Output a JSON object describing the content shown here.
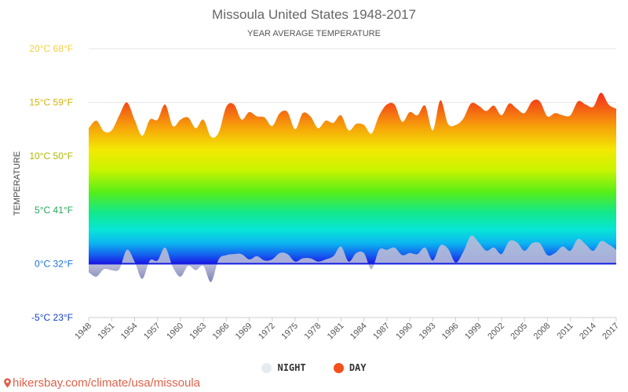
{
  "title": "Missoula United States 1948-2017",
  "subtitle": "YEAR AVERAGE TEMPERATURE",
  "legend": {
    "night": "NIGHT",
    "day": "DAY"
  },
  "source": "hikersbay.com/climate/usa/missoula",
  "colors": {
    "night_legend": "#e6ebf0",
    "day_legend": "#f4501e",
    "night_fill": "#7c7fb5",
    "baseline": "#1420e0",
    "source": "#e0604a"
  },
  "chart_data": {
    "type": "area",
    "title": "Missoula United States 1948-2017",
    "subtitle": "YEAR AVERAGE TEMPERATURE",
    "ylabel": "TEMPERATURE",
    "xlabel": "",
    "ylim": [
      -5,
      20
    ],
    "xlim": [
      1948,
      2017
    ],
    "y_ticks": [
      {
        "value": 20,
        "label": "20°C 68°F",
        "color": "#f4d03f"
      },
      {
        "value": 15,
        "label": "15°C 59°F",
        "color": "#d4b20a"
      },
      {
        "value": 10,
        "label": "10°C 50°F",
        "color": "#b0b800"
      },
      {
        "value": 5,
        "label": "5°C 41°F",
        "color": "#22a858"
      },
      {
        "value": 0,
        "label": "0°C 32°F",
        "color": "#1a72d8"
      },
      {
        "value": -5,
        "label": "-5°C 23°F",
        "color": "#1440c8"
      }
    ],
    "x_ticks": [
      "1948",
      "1951",
      "1954",
      "1957",
      "1960",
      "1963",
      "1966",
      "1969",
      "1972",
      "1975",
      "1978",
      "1981",
      "1984",
      "1987",
      "1990",
      "1993",
      "1996",
      "1999",
      "2002",
      "2005",
      "2008",
      "2011",
      "2014",
      "2017"
    ],
    "grid": true,
    "legend_position": "bottom",
    "x": [
      1948,
      1949,
      1950,
      1951,
      1952,
      1953,
      1954,
      1955,
      1956,
      1957,
      1958,
      1959,
      1960,
      1961,
      1962,
      1963,
      1964,
      1965,
      1966,
      1967,
      1968,
      1969,
      1970,
      1971,
      1972,
      1973,
      1974,
      1975,
      1976,
      1977,
      1978,
      1979,
      1980,
      1981,
      1982,
      1983,
      1984,
      1985,
      1986,
      1987,
      1988,
      1989,
      1990,
      1991,
      1992,
      1993,
      1994,
      1995,
      1996,
      1997,
      1998,
      1999,
      2000,
      2001,
      2002,
      2003,
      2004,
      2005,
      2006,
      2007,
      2008,
      2009,
      2010,
      2011,
      2012,
      2013,
      2014,
      2015,
      2016,
      2017
    ],
    "series": [
      {
        "name": "DAY",
        "values": [
          12.6,
          13.3,
          12.3,
          12.4,
          13.8,
          15.0,
          13.4,
          11.9,
          13.4,
          13.4,
          14.8,
          12.8,
          13.4,
          13.6,
          12.6,
          13.4,
          11.8,
          12.2,
          14.6,
          14.8,
          13.4,
          14.1,
          13.7,
          13.6,
          12.8,
          14.0,
          14.1,
          12.5,
          14.0,
          13.7,
          12.6,
          13.3,
          13.1,
          13.8,
          12.4,
          13.0,
          12.9,
          12.1,
          13.8,
          14.8,
          14.8,
          13.2,
          14.1,
          13.8,
          14.7,
          12.4,
          15.2,
          13.0,
          12.9,
          13.5,
          14.9,
          14.7,
          14.2,
          14.7,
          13.8,
          14.9,
          14.4,
          14.0,
          15.1,
          15.1,
          13.7,
          14.0,
          13.8,
          13.8,
          15.1,
          14.8,
          14.6,
          15.9,
          14.8,
          14.4
        ]
      },
      {
        "name": "NIGHT",
        "values": [
          -0.8,
          -1.2,
          -0.5,
          -0.6,
          -0.5,
          1.3,
          0.2,
          -1.4,
          0.3,
          0.3,
          1.5,
          -0.3,
          -1.2,
          -0.2,
          -0.6,
          -0.2,
          -1.7,
          0.4,
          0.8,
          0.9,
          0.9,
          0.4,
          0.7,
          0.3,
          0.4,
          1.0,
          0.9,
          0.2,
          0.5,
          0.5,
          0.2,
          0.4,
          0.7,
          1.6,
          0.2,
          1.0,
          1.0,
          -0.5,
          1.3,
          1.3,
          1.5,
          0.8,
          1.0,
          0.9,
          1.5,
          0.3,
          1.7,
          1.4,
          0.1,
          1.1,
          2.6,
          2.0,
          1.2,
          1.5,
          0.9,
          2.1,
          2.0,
          1.2,
          1.9,
          1.9,
          0.8,
          1.0,
          1.6,
          1.2,
          2.3,
          1.8,
          1.2,
          2.1,
          1.8,
          1.3
        ]
      }
    ]
  }
}
